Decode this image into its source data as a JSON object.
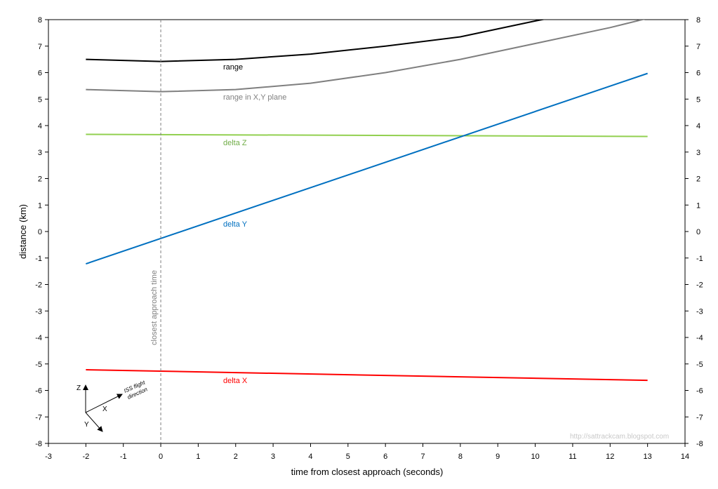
{
  "chart_data": {
    "type": "line",
    "xlabel": "time from closest approach (seconds)",
    "ylabel": "distance (km)",
    "xlim": [
      -3,
      14
    ],
    "ylim": [
      -8,
      8
    ],
    "x_ticks": [
      -3,
      -2,
      -1,
      0,
      1,
      2,
      3,
      4,
      5,
      6,
      7,
      8,
      9,
      10,
      11,
      12,
      13,
      14
    ],
    "y_ticks": [
      -8,
      -7,
      -6,
      -5,
      -4,
      -3,
      -2,
      -1,
      0,
      1,
      2,
      3,
      4,
      5,
      6,
      7,
      8
    ],
    "right_axis": true,
    "grid": false,
    "legend": "none (inline labels)",
    "series": [
      {
        "name": "range",
        "color": "#000000",
        "x": [
          -2,
          0,
          2,
          4,
          6,
          8,
          10,
          12,
          13
        ],
        "y": [
          6.5,
          6.42,
          6.5,
          6.7,
          7.0,
          7.35,
          7.95,
          8.5,
          8.8
        ]
      },
      {
        "name": "range in X,Y plane",
        "color": "#7f7f7f",
        "x": [
          -2,
          0,
          2,
          4,
          6,
          8,
          10,
          12,
          13
        ],
        "y": [
          5.36,
          5.28,
          5.36,
          5.6,
          6.0,
          6.5,
          7.1,
          7.7,
          8.05
        ]
      },
      {
        "name": "delta Z",
        "color": "#92d050",
        "x": [
          -2,
          13
        ],
        "y": [
          3.67,
          3.59
        ]
      },
      {
        "name": "delta Y",
        "color": "#0070c0",
        "x": [
          -2,
          13
        ],
        "y": [
          -1.22,
          5.97
        ]
      },
      {
        "name": "delta X",
        "color": "#ff0000",
        "x": [
          -2,
          13
        ],
        "y": [
          -5.22,
          -5.62
        ]
      }
    ],
    "annotations": {
      "vertical_line_label": "closest approach time",
      "vertical_line_x": 0,
      "watermark": "http://sattrackcam.blogspot.com",
      "inset": {
        "z_label": "Z",
        "x_label": "X",
        "y_label": "Y",
        "flight_label_1": "ISS flight",
        "flight_label_2": "direction"
      }
    }
  }
}
